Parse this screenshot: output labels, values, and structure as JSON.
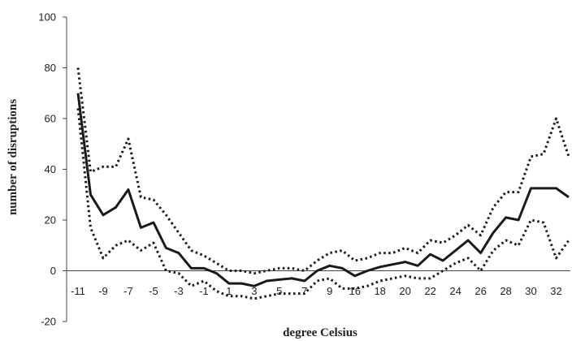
{
  "chart_data": {
    "type": "line",
    "title": "",
    "xlabel": "degree Celsius",
    "ylabel": "number of disruptions",
    "ylim": [
      -20,
      100
    ],
    "yticks": [
      -20,
      0,
      20,
      40,
      60,
      80,
      100
    ],
    "x": [
      -11,
      -10,
      -9,
      -8,
      -7,
      -6,
      -5,
      -4,
      -3,
      -2,
      -1,
      0,
      1,
      2,
      3,
      4,
      5,
      6,
      7,
      8,
      9,
      10,
      16,
      17,
      18,
      19,
      20,
      21,
      22,
      23,
      24,
      25,
      26,
      27,
      28,
      29,
      30,
      31,
      32,
      33
    ],
    "xtick_labels": [
      "-11",
      "-9",
      "-7",
      "-5",
      "-3",
      "-1",
      "1",
      "3",
      "5",
      "7",
      "9",
      "16",
      "18",
      "20",
      "22",
      "24",
      "26",
      "28",
      "30",
      "32"
    ],
    "series": [
      {
        "style": "solid",
        "values": [
          70,
          30,
          22,
          25,
          32,
          17,
          19,
          9,
          7,
          1,
          1,
          -1,
          -5,
          -5,
          -6,
          -4,
          -3.5,
          -3,
          -4,
          0,
          2,
          1,
          -2,
          0,
          1.5,
          2.5,
          3.5,
          2,
          6.5,
          4,
          8,
          12,
          7,
          15,
          21,
          20,
          32.5,
          32.5,
          32.5,
          29
        ]
      },
      {
        "style": "dotted",
        "values": [
          80,
          39,
          41,
          41,
          52,
          29,
          28,
          22,
          15,
          8,
          6,
          3,
          0,
          0,
          -1,
          0,
          1,
          1,
          0,
          4,
          7,
          8,
          4,
          5,
          7,
          7,
          9,
          7,
          12,
          11,
          14,
          18,
          14,
          25,
          31,
          31,
          45,
          46,
          60,
          45
        ]
      },
      {
        "style": "dotted",
        "values": [
          64,
          17,
          5,
          10,
          12,
          8,
          11,
          0,
          -1,
          -6,
          -4,
          -8,
          -10,
          -10,
          -11,
          -10,
          -9,
          -9,
          -9,
          -4,
          -3,
          -7,
          -7,
          -6,
          -4,
          -3,
          -2,
          -3,
          -3,
          0,
          3,
          5,
          0,
          8,
          12,
          10,
          20,
          19,
          5,
          12
        ]
      }
    ],
    "line_color": "#1a1a1a",
    "grid": false
  }
}
